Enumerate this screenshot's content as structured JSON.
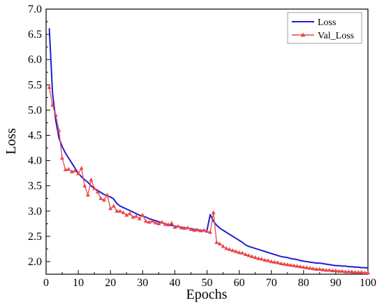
{
  "chart_data": {
    "type": "line",
    "xlabel": "Epochs",
    "ylabel": "Loss",
    "xlim": [
      0,
      100
    ],
    "ylim": [
      1.75,
      7.0
    ],
    "x_ticks": [
      0,
      10,
      20,
      30,
      40,
      50,
      60,
      70,
      80,
      90,
      100
    ],
    "y_ticks": [
      2.0,
      2.5,
      3.0,
      3.5,
      4.0,
      4.5,
      5.0,
      5.5,
      6.0,
      6.5,
      7.0
    ],
    "y_tick_labels": [
      "2.0",
      "2.5",
      "3.0",
      "3.5",
      "4.0",
      "4.5",
      "5.0",
      "5.5",
      "6.0",
      "6.5",
      "7.0"
    ],
    "x_tick_labels": [
      "0",
      "10",
      "20",
      "30",
      "40",
      "50",
      "60",
      "70",
      "80",
      "90",
      "100"
    ],
    "legend_position": "top-right",
    "grid": false,
    "series": [
      {
        "name": "Loss",
        "color": "#1f1fd1",
        "marker": "none",
        "x": [
          1,
          2,
          3,
          4,
          5,
          6,
          7,
          8,
          9,
          10,
          11,
          12,
          13,
          14,
          15,
          16,
          17,
          18,
          19,
          20,
          21,
          22,
          23,
          24,
          25,
          26,
          27,
          28,
          29,
          30,
          31,
          32,
          33,
          34,
          35,
          36,
          37,
          38,
          39,
          40,
          41,
          42,
          43,
          44,
          45,
          46,
          47,
          48,
          49,
          50,
          51,
          52,
          53,
          54,
          55,
          56,
          57,
          58,
          59,
          60,
          61,
          62,
          63,
          64,
          65,
          66,
          67,
          68,
          69,
          70,
          71,
          72,
          73,
          74,
          75,
          76,
          77,
          78,
          79,
          80,
          81,
          82,
          83,
          84,
          85,
          86,
          87,
          88,
          89,
          90,
          91,
          92,
          93,
          94,
          95,
          96,
          97,
          98,
          99,
          100
        ],
        "values": [
          6.62,
          5.35,
          4.8,
          4.45,
          4.28,
          4.15,
          4.05,
          3.95,
          3.85,
          3.75,
          3.68,
          3.62,
          3.57,
          3.5,
          3.45,
          3.41,
          3.37,
          3.33,
          3.3,
          3.28,
          3.24,
          3.15,
          3.1,
          3.07,
          3.04,
          3.01,
          2.98,
          2.95,
          2.92,
          2.9,
          2.88,
          2.85,
          2.83,
          2.81,
          2.79,
          2.77,
          2.75,
          2.73,
          2.72,
          2.7,
          2.69,
          2.68,
          2.67,
          2.66,
          2.65,
          2.64,
          2.63,
          2.62,
          2.61,
          2.62,
          2.93,
          2.8,
          2.72,
          2.66,
          2.62,
          2.58,
          2.54,
          2.5,
          2.46,
          2.42,
          2.38,
          2.33,
          2.3,
          2.28,
          2.26,
          2.24,
          2.22,
          2.2,
          2.18,
          2.16,
          2.14,
          2.12,
          2.1,
          2.09,
          2.08,
          2.06,
          2.05,
          2.04,
          2.02,
          2.01,
          2.0,
          1.99,
          1.98,
          1.97,
          1.97,
          1.96,
          1.95,
          1.94,
          1.93,
          1.92,
          1.92,
          1.91,
          1.91,
          1.9,
          1.9,
          1.89,
          1.89,
          1.88,
          1.88,
          1.87
        ]
      },
      {
        "name": "Val_Loss",
        "color": "#e8474c",
        "marker": "triangle",
        "x": [
          1,
          2,
          3,
          4,
          5,
          6,
          7,
          8,
          9,
          10,
          11,
          12,
          13,
          14,
          15,
          16,
          17,
          18,
          19,
          20,
          21,
          22,
          23,
          24,
          25,
          26,
          27,
          28,
          29,
          30,
          31,
          32,
          33,
          34,
          35,
          36,
          37,
          38,
          39,
          40,
          41,
          42,
          43,
          44,
          45,
          46,
          47,
          48,
          49,
          50,
          51,
          52,
          53,
          54,
          55,
          56,
          57,
          58,
          59,
          60,
          61,
          62,
          63,
          64,
          65,
          66,
          67,
          68,
          69,
          70,
          71,
          72,
          73,
          74,
          75,
          76,
          77,
          78,
          79,
          80,
          81,
          82,
          83,
          84,
          85,
          86,
          87,
          88,
          89,
          90,
          91,
          92,
          93,
          94,
          95,
          96,
          97,
          98,
          99,
          100
        ],
        "values": [
          5.45,
          5.1,
          4.9,
          4.6,
          4.05,
          3.82,
          3.83,
          3.78,
          3.8,
          3.74,
          3.85,
          3.5,
          3.32,
          3.62,
          3.45,
          3.38,
          3.25,
          3.22,
          3.32,
          3.05,
          3.1,
          3.0,
          3.0,
          2.97,
          2.92,
          2.95,
          2.88,
          2.9,
          2.85,
          2.92,
          2.8,
          2.78,
          2.8,
          2.77,
          2.75,
          2.78,
          2.74,
          2.73,
          2.76,
          2.68,
          2.7,
          2.67,
          2.66,
          2.67,
          2.64,
          2.62,
          2.63,
          2.61,
          2.62,
          2.6,
          2.58,
          2.97,
          2.38,
          2.35,
          2.3,
          2.26,
          2.24,
          2.22,
          2.2,
          2.18,
          2.17,
          2.14,
          2.12,
          2.1,
          2.08,
          2.06,
          2.05,
          2.03,
          2.02,
          2.0,
          1.99,
          1.98,
          1.96,
          1.95,
          1.94,
          1.93,
          1.92,
          1.91,
          1.9,
          1.89,
          1.88,
          1.87,
          1.86,
          1.85,
          1.85,
          1.84,
          1.83,
          1.83,
          1.82,
          1.82,
          1.81,
          1.81,
          1.8,
          1.8,
          1.8,
          1.79,
          1.79,
          1.79,
          1.78,
          1.78
        ]
      }
    ]
  }
}
